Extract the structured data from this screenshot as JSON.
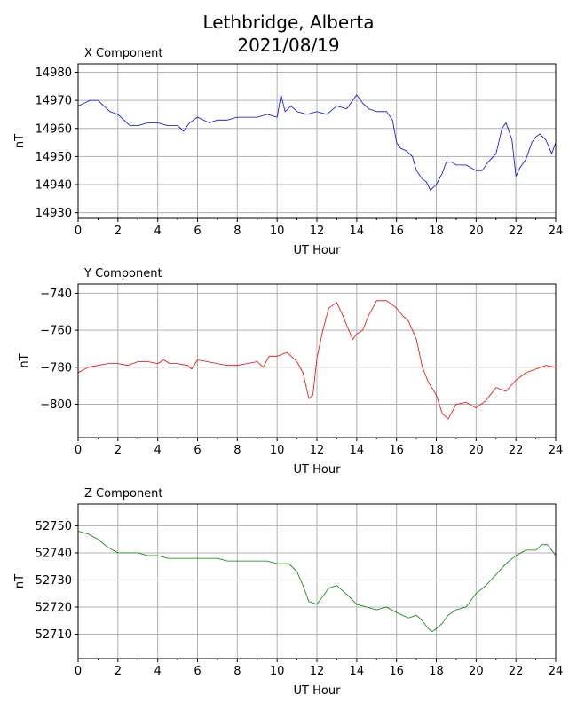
{
  "figure": {
    "title_line1": "Lethbridge, Alberta",
    "title_line2": "2021/08/19"
  },
  "chart_data": [
    {
      "type": "line",
      "title": "X Component",
      "xlabel": "UT Hour",
      "ylabel": "nT",
      "xlim": [
        0,
        24
      ],
      "ylim": [
        14928,
        14983
      ],
      "xticks": [
        0,
        2,
        4,
        6,
        8,
        10,
        12,
        14,
        16,
        18,
        20,
        22,
        24
      ],
      "yticks": [
        14930,
        14940,
        14950,
        14960,
        14970,
        14980
      ],
      "grid": true,
      "color": "#0000ff",
      "series": [
        {
          "x": [
            0,
            0.3,
            0.6,
            1.0,
            1.3,
            1.6,
            2.0,
            2.3,
            2.6,
            3.0,
            3.5,
            4.0,
            4.5,
            5.0,
            5.3,
            5.6,
            6.0,
            6.3,
            6.6,
            7.0,
            7.5,
            8.0,
            8.5,
            9.0,
            9.5,
            10.0,
            10.2,
            10.4,
            10.7,
            11.0,
            11.5,
            12.0,
            12.5,
            13.0,
            13.5,
            14.0,
            14.3,
            14.6,
            15.0,
            15.5,
            15.8,
            16.0,
            16.2,
            16.5,
            16.8,
            17.0,
            17.3,
            17.5,
            17.7,
            18.0,
            18.3,
            18.5,
            18.8,
            19.0,
            19.5,
            20.0,
            20.3,
            20.6,
            21.0,
            21.3,
            21.5,
            21.8,
            22.0,
            22.2,
            22.5,
            22.8,
            23.0,
            23.2,
            23.5,
            23.8,
            24.0
          ],
          "y": [
            14968,
            14969,
            14970,
            14970,
            14968,
            14966,
            14965,
            14963,
            14961,
            14961,
            14962,
            14962,
            14961,
            14961,
            14959,
            14962,
            14964,
            14963,
            14962,
            14963,
            14963,
            14964,
            14964,
            14964,
            14965,
            14964,
            14972,
            14966,
            14968,
            14966,
            14965,
            14966,
            14965,
            14968,
            14967,
            14972,
            14969,
            14967,
            14966,
            14966,
            14963,
            14955,
            14953,
            14952,
            14950,
            14945,
            14942,
            14941,
            14938,
            14940,
            14944,
            14948,
            14948,
            14947,
            14947,
            14945,
            14945,
            14948,
            14951,
            14960,
            14962,
            14956,
            14943,
            14946,
            14949,
            14955,
            14957,
            14958,
            14956,
            14951,
            14955
          ]
        }
      ]
    },
    {
      "type": "line",
      "title": "Y Component",
      "xlabel": "UT Hour",
      "ylabel": "nT",
      "xlim": [
        0,
        24
      ],
      "ylim": [
        -818,
        -735
      ],
      "xticks": [
        0,
        2,
        4,
        6,
        8,
        10,
        12,
        14,
        16,
        18,
        20,
        22,
        24
      ],
      "yticks": [
        -740,
        -760,
        -780,
        -800
      ],
      "grid": true,
      "color": "#ff0000",
      "series": [
        {
          "x": [
            0,
            0.5,
            1.0,
            1.5,
            2.0,
            2.5,
            3.0,
            3.5,
            4.0,
            4.3,
            4.6,
            5.0,
            5.5,
            5.7,
            6.0,
            6.5,
            7.0,
            7.5,
            8.0,
            8.5,
            9.0,
            9.3,
            9.6,
            10.0,
            10.5,
            11.0,
            11.3,
            11.6,
            11.8,
            12.0,
            12.3,
            12.6,
            13.0,
            13.3,
            13.6,
            13.8,
            14.0,
            14.3,
            14.6,
            15.0,
            15.5,
            16.0,
            16.3,
            16.6,
            17.0,
            17.3,
            17.6,
            18.0,
            18.3,
            18.6,
            19.0,
            19.5,
            20.0,
            20.5,
            21.0,
            21.5,
            22.0,
            22.5,
            23.0,
            23.5,
            24.0
          ],
          "y": [
            -783,
            -780,
            -779,
            -778,
            -778,
            -779,
            -777,
            -777,
            -778,
            -776,
            -778,
            -778,
            -779,
            -781,
            -776,
            -777,
            -778,
            -779,
            -779,
            -778,
            -777,
            -780,
            -774,
            -774,
            -772,
            -777,
            -783,
            -797,
            -795,
            -775,
            -760,
            -748,
            -745,
            -752,
            -760,
            -765,
            -762,
            -760,
            -752,
            -744,
            -744,
            -748,
            -752,
            -755,
            -765,
            -780,
            -788,
            -795,
            -805,
            -808,
            -800,
            -799,
            -802,
            -798,
            -791,
            -793,
            -787,
            -783,
            -781,
            -779,
            -780
          ]
        }
      ]
    },
    {
      "type": "line",
      "title": "Z Component",
      "xlabel": "UT Hour",
      "ylabel": "nT",
      "xlim": [
        0,
        24
      ],
      "ylim": [
        52701,
        52758
      ],
      "xticks": [
        0,
        2,
        4,
        6,
        8,
        10,
        12,
        14,
        16,
        18,
        20,
        22,
        24
      ],
      "yticks": [
        52710,
        52720,
        52730,
        52740,
        52750
      ],
      "grid": true,
      "color": "#008000",
      "series": [
        {
          "x": [
            0,
            0.5,
            1.0,
            1.5,
            2.0,
            2.5,
            3.0,
            3.5,
            4.0,
            4.5,
            5.0,
            5.5,
            6.0,
            6.5,
            7.0,
            7.5,
            8.0,
            8.5,
            9.0,
            9.5,
            10.0,
            10.3,
            10.6,
            11.0,
            11.3,
            11.6,
            12.0,
            12.3,
            12.6,
            13.0,
            13.3,
            13.6,
            14.0,
            14.5,
            15.0,
            15.5,
            16.0,
            16.3,
            16.6,
            17.0,
            17.3,
            17.6,
            17.8,
            18.0,
            18.3,
            18.6,
            19.0,
            19.5,
            20.0,
            20.5,
            21.0,
            21.5,
            22.0,
            22.5,
            23.0,
            23.3,
            23.6,
            24.0
          ],
          "y": [
            52748,
            52747,
            52745,
            52742,
            52740,
            52740,
            52740,
            52739,
            52739,
            52738,
            52738,
            52738,
            52738,
            52738,
            52738,
            52737,
            52737,
            52737,
            52737,
            52737,
            52736,
            52736,
            52736,
            52733,
            52728,
            52722,
            52721,
            52724,
            52727,
            52728,
            52726,
            52724,
            52721,
            52720,
            52719,
            52720,
            52718,
            52717,
            52716,
            52717,
            52715,
            52712,
            52711,
            52712,
            52714,
            52717,
            52719,
            52720,
            52725,
            52728,
            52732,
            52736,
            52739,
            52741,
            52741,
            52743,
            52743,
            52739
          ]
        }
      ]
    }
  ]
}
